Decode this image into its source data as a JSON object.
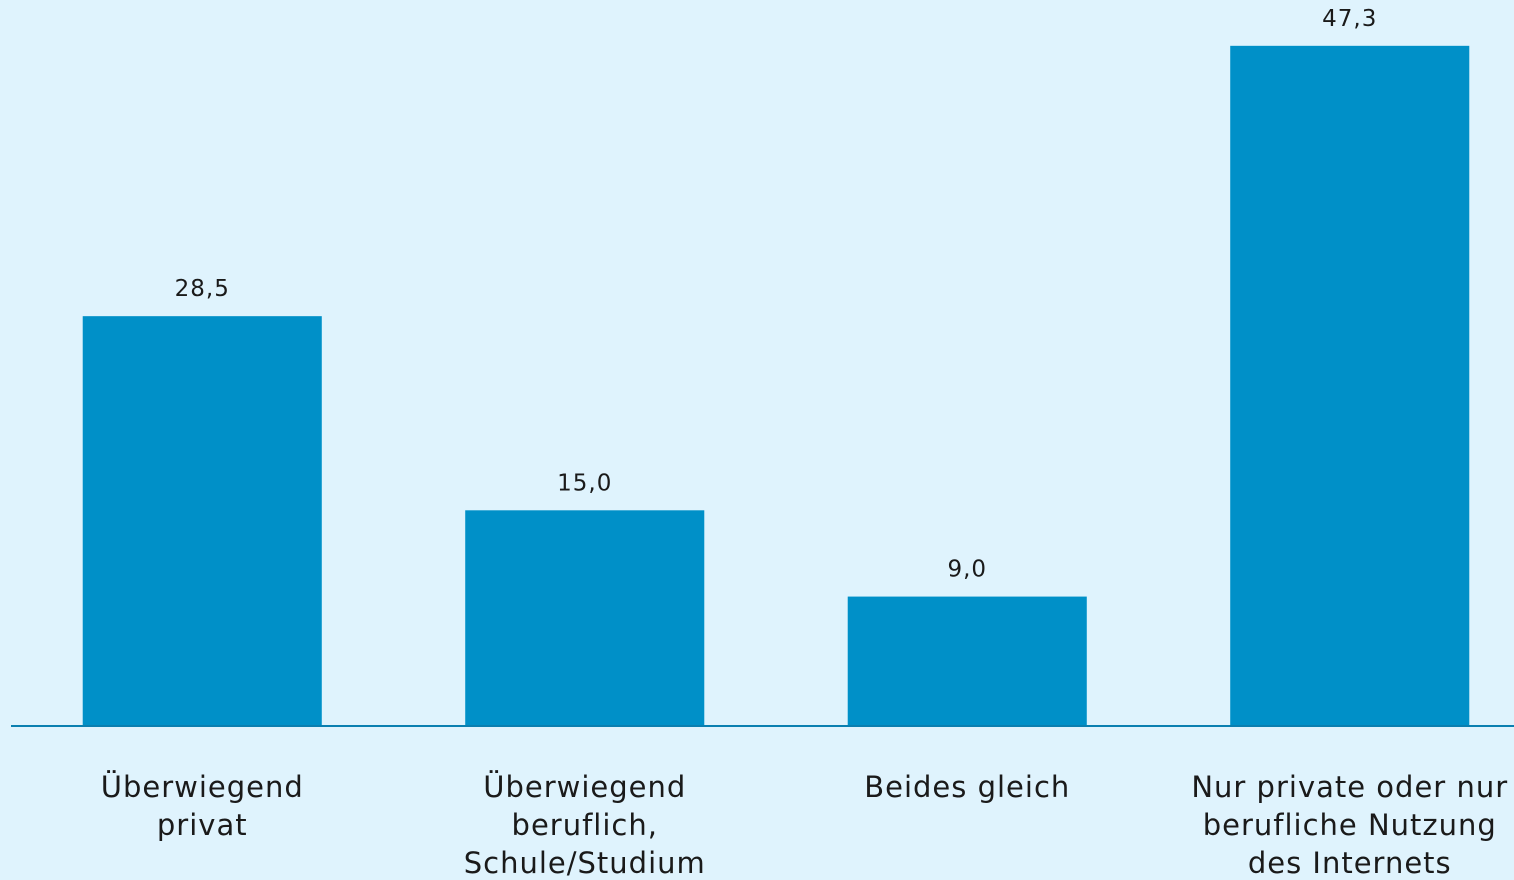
{
  "chart_data": {
    "type": "bar",
    "categories": [
      "Überwiegend\nprivat",
      "Überwiegend\nberuflich,\nSchule/Studium",
      "Beides gleich",
      "Nur private oder nur\nberufliche Nutzung\ndes Internets"
    ],
    "values": [
      28.5,
      15.0,
      9.0,
      47.3
    ],
    "value_labels": [
      "28,5",
      "15,0",
      "9,0",
      "47,3"
    ],
    "color": "#0090c8",
    "ylim": [
      0,
      50
    ]
  }
}
